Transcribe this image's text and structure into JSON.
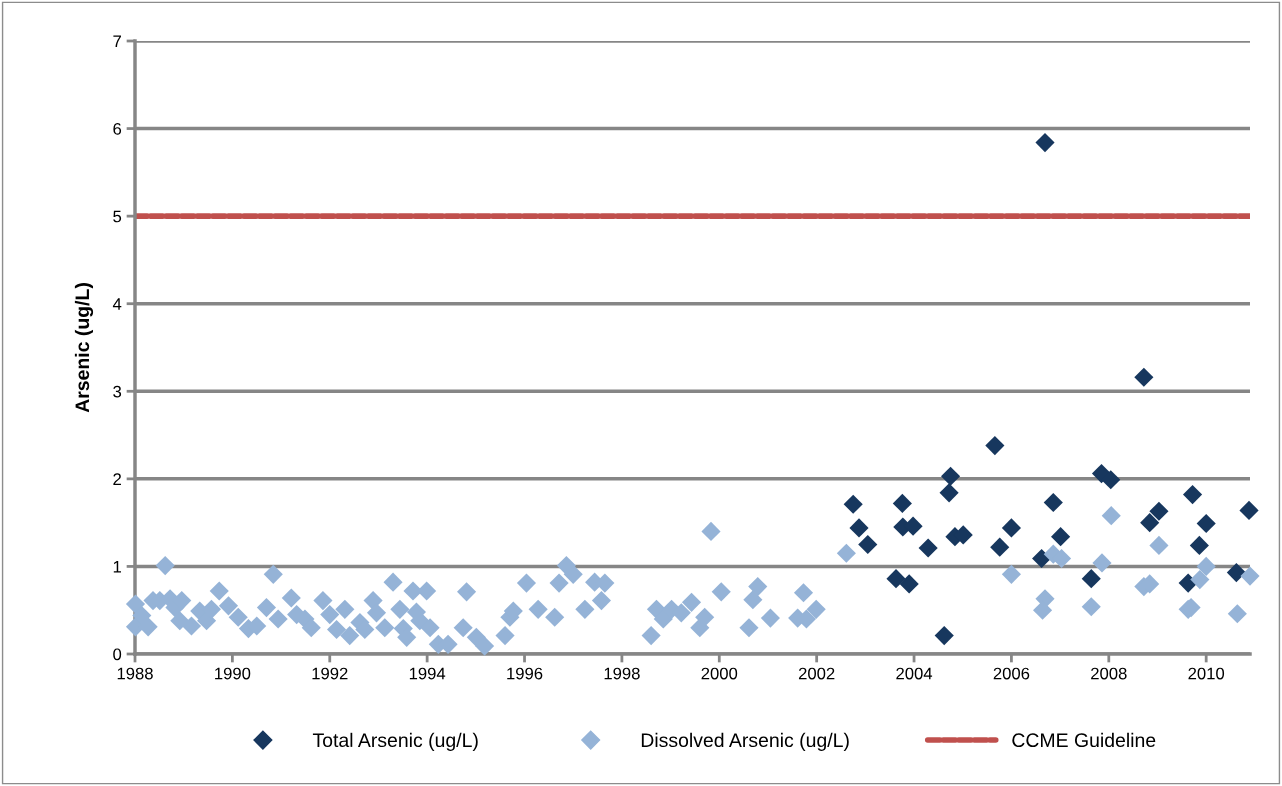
{
  "chart_data": {
    "type": "scatter",
    "ylabel": "Arsenic (ug/L)",
    "xlim": [
      1988,
      2010.9
    ],
    "xticks": [
      1988,
      1990,
      1992,
      1994,
      1996,
      1998,
      2000,
      2002,
      2004,
      2006,
      2008,
      2010
    ],
    "ylim": [
      0,
      7
    ],
    "yticks": [
      0,
      1,
      2,
      3,
      4,
      5,
      6,
      7
    ],
    "grid": "y",
    "legend": "bottom",
    "marker": "diamond",
    "series": [
      {
        "name": "Total Arsenic (ug/L)",
        "color": "#17375e",
        "x": [
          2002.75,
          2002.87,
          2003.05,
          2003.63,
          2003.76,
          2003.77,
          2003.98,
          2003.9,
          2004.29,
          2004.62,
          2004.75,
          2004.72,
          2004.84,
          2005.01,
          2005.66,
          2006.0,
          2005.76,
          2006.62,
          2006.69,
          2006.86,
          2007.01,
          2007.64,
          2007.85,
          2008.04,
          2008.72,
          2008.84,
          2009.03,
          2009.72,
          2010.0,
          2009.86,
          2009.63,
          2010.62,
          2010.88
        ],
        "values": [
          1.71,
          1.44,
          1.25,
          0.86,
          1.72,
          1.45,
          1.46,
          0.8,
          1.21,
          0.21,
          2.03,
          1.84,
          1.34,
          1.36,
          2.38,
          1.44,
          1.22,
          1.09,
          5.84,
          1.73,
          1.34,
          0.86,
          2.06,
          1.99,
          3.16,
          1.5,
          1.63,
          1.82,
          1.49,
          1.24,
          0.81,
          0.93,
          1.64
        ]
      },
      {
        "name": "Dissolved Arsenic (ug/L)",
        "color": "#95b3d7",
        "x": [
          1988.01,
          1988.01,
          1988.14,
          1988.27,
          1988.37,
          1988.51,
          1988.62,
          1988.72,
          1988.82,
          1988.96,
          1988.92,
          1989.16,
          1989.33,
          1989.47,
          1989.57,
          1989.73,
          1989.92,
          1990.12,
          1990.33,
          1990.5,
          1990.7,
          1990.84,
          1990.94,
          1991.21,
          1991.32,
          1991.49,
          1991.62,
          1991.86,
          1992.0,
          1992.14,
          1992.31,
          1992.41,
          1992.62,
          1992.72,
          1992.89,
          1992.96,
          1993.13,
          1993.3,
          1993.44,
          1993.51,
          1993.58,
          1993.71,
          1993.78,
          1993.85,
          1993.99,
          1994.06,
          1994.23,
          1994.43,
          1994.81,
          1994.74,
          1995.01,
          1995.18,
          1995.6,
          1995.7,
          1995.77,
          1996.04,
          1996.28,
          1996.62,
          1996.71,
          1996.86,
          1997.0,
          1997.24,
          1997.44,
          1997.58,
          1997.65,
          1998.6,
          1998.71,
          1998.85,
          1999.02,
          1999.22,
          1999.43,
          1999.6,
          1999.7,
          1999.83,
          2000.04,
          2000.61,
          2000.69,
          2000.79,
          2001.05,
          2001.61,
          2001.73,
          2001.79,
          2001.99,
          2002.61,
          2006.0,
          2006.69,
          2006.64,
          2006.86,
          2007.03,
          2007.64,
          2007.86,
          2008.05,
          2008.72,
          2008.84,
          2009.03,
          2009.63,
          2009.69,
          2009.87,
          2010.0,
          2010.64,
          2010.9
        ],
        "values": [
          0.57,
          0.31,
          0.44,
          0.31,
          0.61,
          0.61,
          1.01,
          0.63,
          0.53,
          0.61,
          0.38,
          0.32,
          0.49,
          0.38,
          0.51,
          0.72,
          0.55,
          0.42,
          0.29,
          0.32,
          0.53,
          0.91,
          0.4,
          0.64,
          0.45,
          0.4,
          0.3,
          0.61,
          0.45,
          0.28,
          0.51,
          0.21,
          0.36,
          0.28,
          0.61,
          0.47,
          0.3,
          0.82,
          0.51,
          0.29,
          0.19,
          0.72,
          0.48,
          0.38,
          0.72,
          0.3,
          0.11,
          0.11,
          0.71,
          0.3,
          0.19,
          0.09,
          0.21,
          0.42,
          0.49,
          0.81,
          0.51,
          0.42,
          0.81,
          1.01,
          0.91,
          0.51,
          0.82,
          0.61,
          0.81,
          0.21,
          0.51,
          0.4,
          0.51,
          0.47,
          0.59,
          0.3,
          0.42,
          1.4,
          0.71,
          0.3,
          0.62,
          0.77,
          0.41,
          0.41,
          0.7,
          0.4,
          0.51,
          1.15,
          0.91,
          0.63,
          0.5,
          1.14,
          1.09,
          0.54,
          1.04,
          1.58,
          0.77,
          0.8,
          1.24,
          0.51,
          0.53,
          0.85,
          1.0,
          0.46,
          0.89
        ]
      }
    ],
    "ref_lines": [
      {
        "axis": "y",
        "value": 5,
        "label": "CCME Guideline",
        "color": "#c0504d",
        "line_style": "dashed"
      }
    ]
  }
}
